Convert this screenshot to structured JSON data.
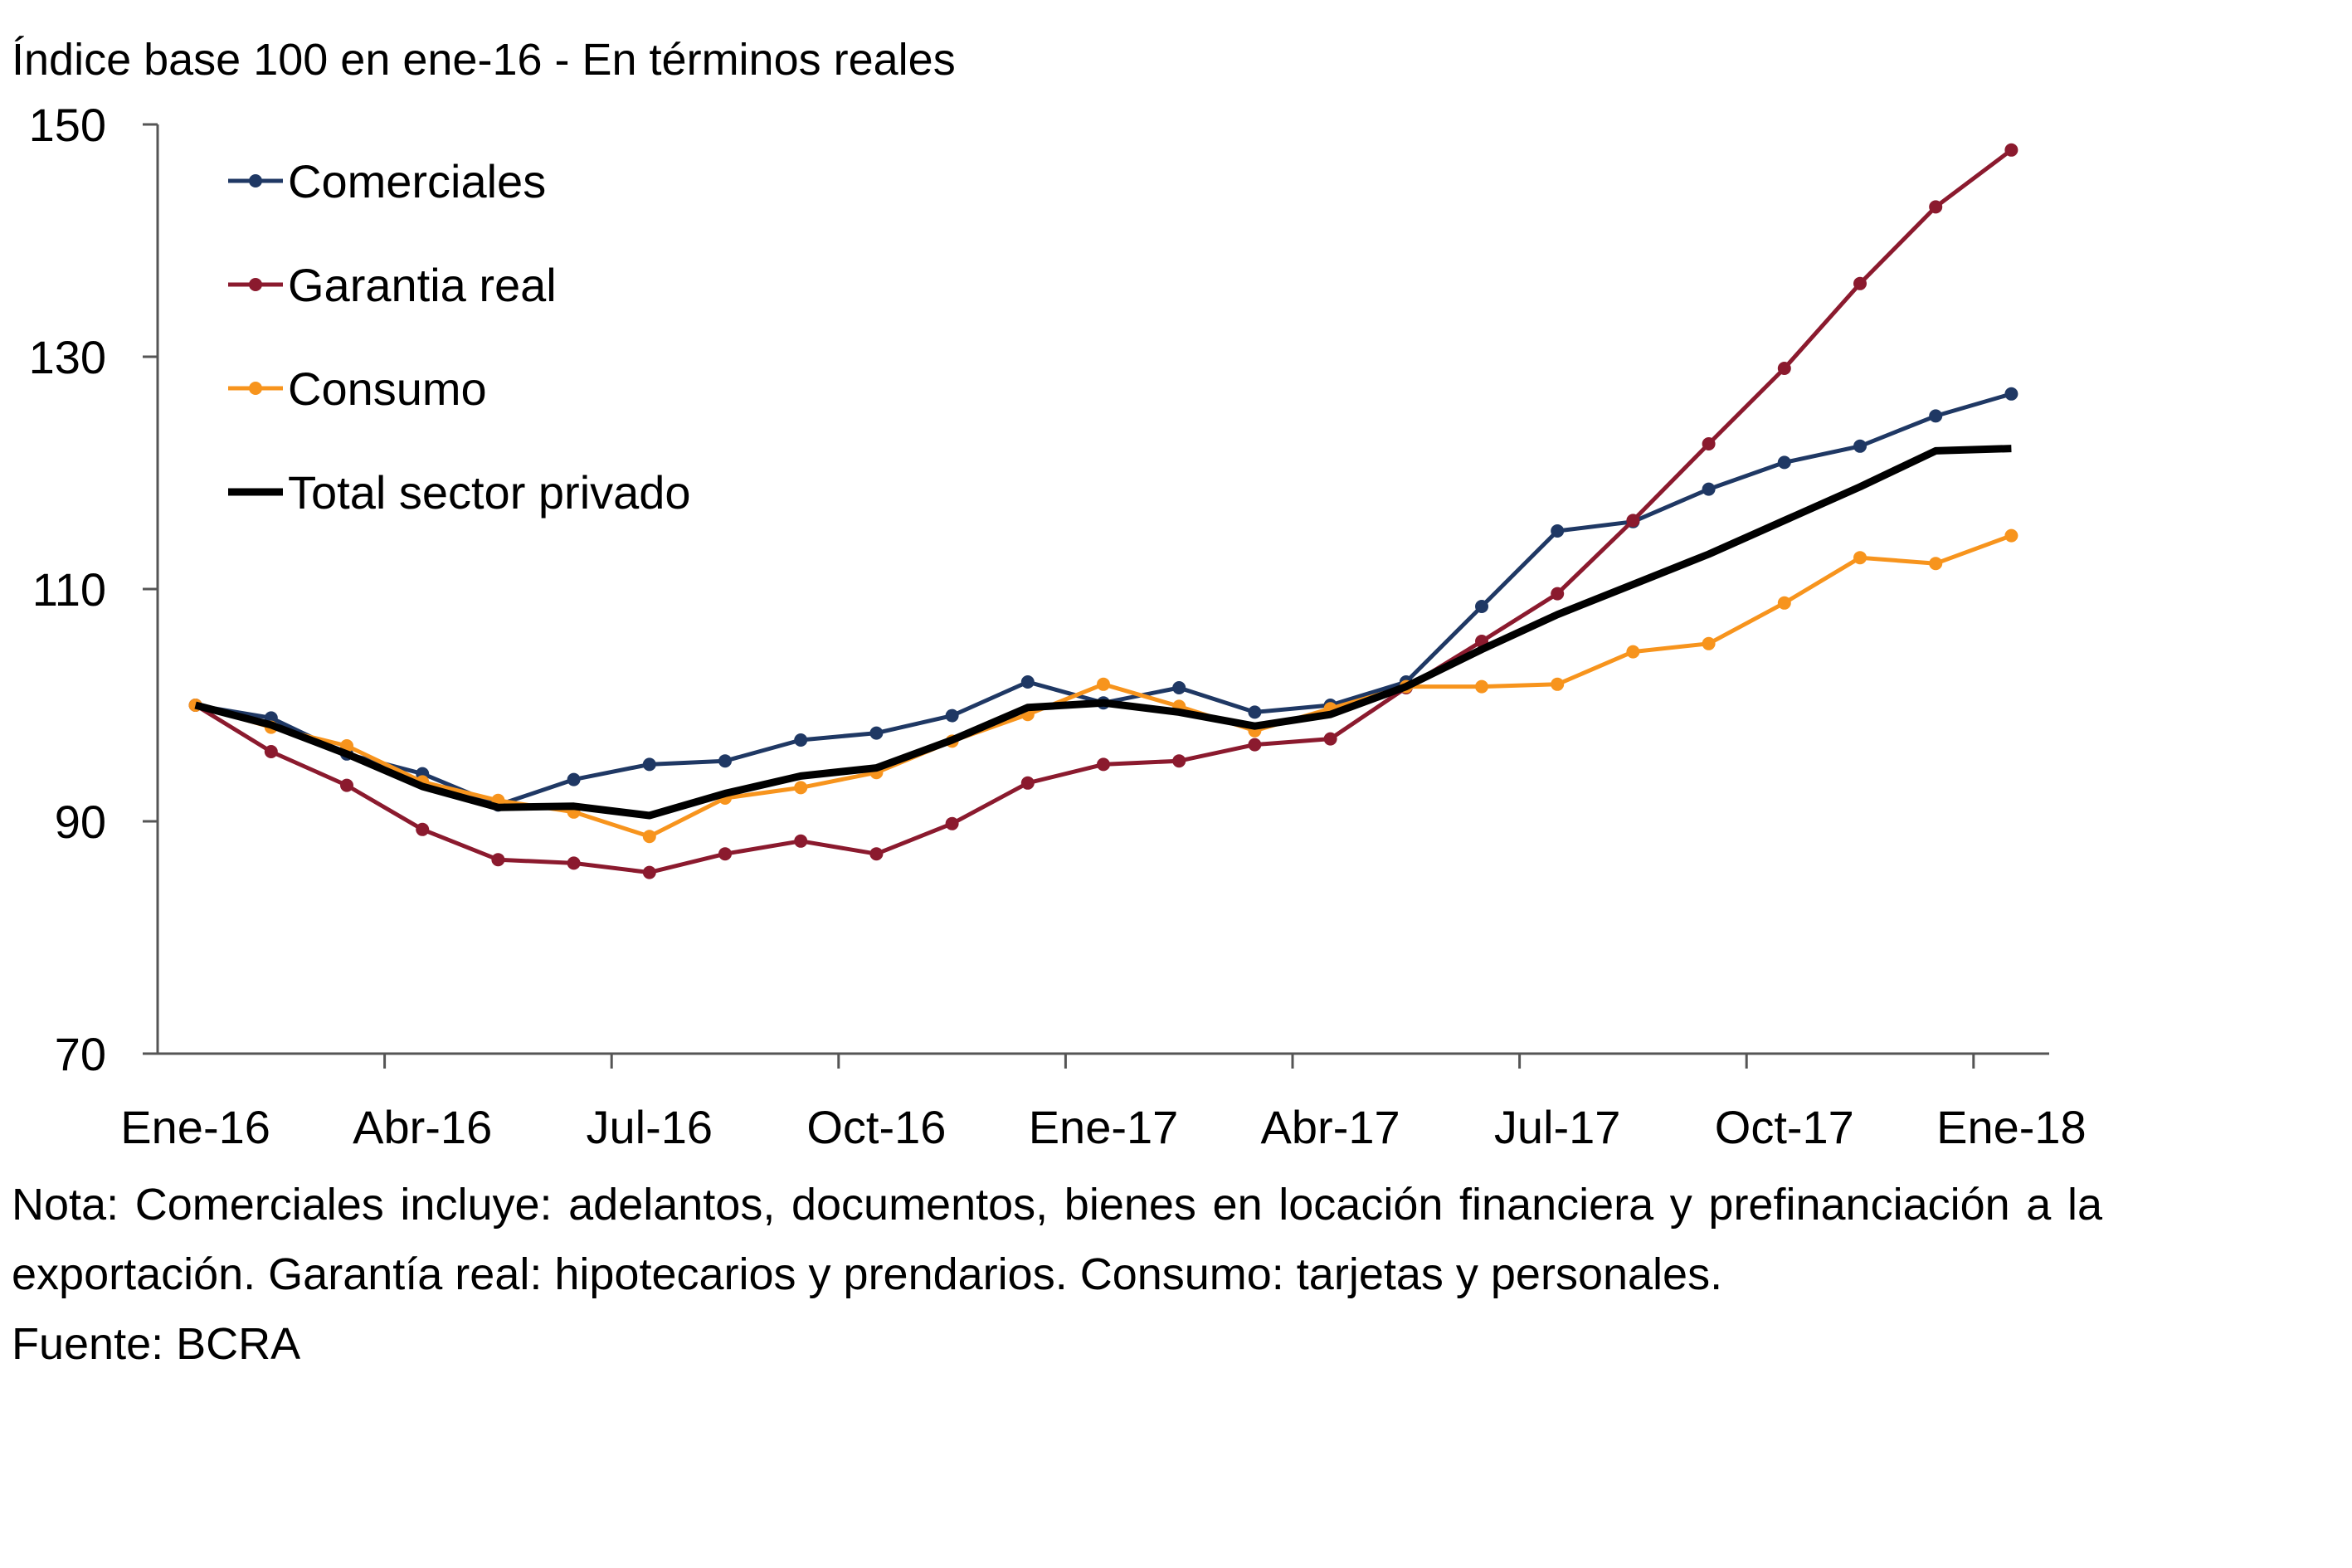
{
  "chart_data": {
    "type": "line",
    "ylabel": "Índice base 100 en ene-16 - En términos reales",
    "ylim": [
      70,
      150
    ],
    "yticks": [
      70,
      90,
      110,
      130,
      150
    ],
    "x": [
      "2016-01",
      "2016-02",
      "2016-03",
      "2016-04",
      "2016-05",
      "2016-06",
      "2016-07",
      "2016-08",
      "2016-09",
      "2016-10",
      "2016-11",
      "2016-12",
      "2017-01",
      "2017-02",
      "2017-03",
      "2017-04",
      "2017-05",
      "2017-06",
      "2017-07",
      "2017-08",
      "2017-09",
      "2017-10",
      "2017-11",
      "2017-12",
      "2018-01"
    ],
    "xtick_labels": [
      "Ene-16",
      "Abr-16",
      "Jul-16",
      "Oct-16",
      "Ene-17",
      "Abr-17",
      "Jul-17",
      "Oct-17",
      "Ene-18"
    ],
    "grid": false,
    "legend_position": "top-left",
    "series": [
      {
        "name": "Comerciales",
        "color": "#1f3864",
        "markers": true,
        "values": [
          100,
          98.9,
          95.8,
          94.1,
          91.4,
          93.6,
          94.9,
          95.2,
          97,
          97.6,
          99.1,
          102,
          100.2,
          101.5,
          99.4,
          100,
          102,
          108.5,
          115,
          115.8,
          118.6,
          120.9,
          122.3,
          124.9,
          126.8
        ]
      },
      {
        "name": "Garantia real",
        "color": "#8b1a2e",
        "markers": true,
        "values": [
          100,
          96,
          93.1,
          89.3,
          86.7,
          86.4,
          85.6,
          87.2,
          88.3,
          87.2,
          89.8,
          93.3,
          94.9,
          95.2,
          96.6,
          97.1,
          101.5,
          105.5,
          109.6,
          115.9,
          122.5,
          129,
          136.3,
          142.9,
          147.8
        ]
      },
      {
        "name": "Consumo",
        "color": "#f7941d",
        "markers": true,
        "values": [
          100,
          98.1,
          96.5,
          93.4,
          91.8,
          90.8,
          88.7,
          92,
          92.9,
          94.2,
          96.9,
          99.2,
          101.8,
          99.9,
          97.8,
          99.7,
          101.6,
          101.6,
          101.8,
          104.6,
          105.3,
          108.8,
          112.7,
          112.2,
          114.6
        ]
      },
      {
        "name": "Total sector privado",
        "color": "#000000",
        "markers": false,
        "values": [
          100,
          98.3,
          95.8,
          93,
          91.2,
          91.3,
          90.5,
          92.4,
          93.9,
          94.6,
          97,
          99.8,
          100.2,
          99.4,
          98.2,
          99.2,
          101.6,
          104.8,
          107.8,
          110.4,
          113,
          115.9,
          118.8,
          121.9,
          122.1
        ]
      }
    ]
  },
  "note": {
    "line1": "Nota: Comerciales incluye: adelantos, documentos, bienes en locación financiera y prefinanciación a la exportación. Garantía real: hipotecarios y prendarios. Consumo: tarjetas y personales.",
    "source": "Fuente: BCRA"
  }
}
